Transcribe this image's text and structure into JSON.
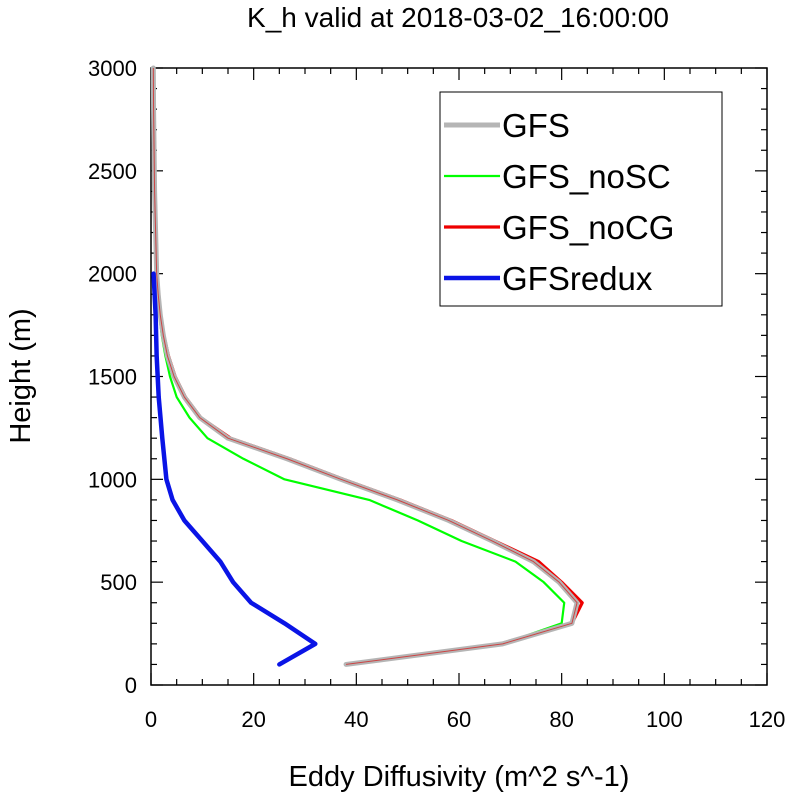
{
  "chart_data": {
    "type": "line",
    "title": "K_h valid at 2018-03-02_16:00:00",
    "xlabel": "Eddy Diffusivity (m^2 s^-1)",
    "ylabel": "Height (m)",
    "xlim": [
      0,
      120
    ],
    "ylim": [
      0,
      3000
    ],
    "xticks": [
      0,
      20,
      40,
      60,
      80,
      100,
      120
    ],
    "yticks": [
      0,
      500,
      1000,
      1500,
      2000,
      2500,
      3000
    ],
    "xtick_labels": [
      "0",
      "20",
      "40",
      "60",
      "80",
      "100",
      "120"
    ],
    "ytick_labels": [
      "0",
      "500",
      "1000",
      "1500",
      "2000",
      "2500",
      "3000"
    ],
    "grid": false,
    "legend_position": "top-right",
    "series": [
      {
        "name": "GFS",
        "color": "#b5b5b5",
        "points": [
          [
            38,
            100
          ],
          [
            68.5,
            200
          ],
          [
            82,
            300
          ],
          [
            83,
            400
          ],
          [
            79.5,
            500
          ],
          [
            74.5,
            600
          ],
          [
            66.5,
            700
          ],
          [
            58,
            800
          ],
          [
            48,
            900
          ],
          [
            37,
            1000
          ],
          [
            26.5,
            1100
          ],
          [
            15,
            1200
          ],
          [
            9.5,
            1300
          ],
          [
            6.5,
            1400
          ],
          [
            4.5,
            1500
          ],
          [
            3.2,
            1600
          ],
          [
            2.4,
            1700
          ],
          [
            1.8,
            1800
          ],
          [
            1.4,
            1900
          ],
          [
            1.1,
            2000
          ],
          [
            0.9,
            2200
          ],
          [
            0.7,
            2400
          ],
          [
            0.6,
            2600
          ],
          [
            0.5,
            2800
          ],
          [
            0.45,
            3000
          ]
        ]
      },
      {
        "name": "GFS_noSC",
        "color": "#00ff00",
        "points": [
          [
            38,
            100
          ],
          [
            68.5,
            200
          ],
          [
            80,
            300
          ],
          [
            80.5,
            400
          ],
          [
            76.5,
            500
          ],
          [
            71,
            600
          ],
          [
            60.5,
            700
          ],
          [
            52,
            800
          ],
          [
            42.5,
            900
          ],
          [
            26,
            1000
          ],
          [
            18,
            1100
          ],
          [
            11,
            1200
          ],
          [
            7.5,
            1300
          ],
          [
            5,
            1400
          ],
          [
            3.7,
            1500
          ],
          [
            2.8,
            1600
          ],
          [
            2.1,
            1700
          ],
          [
            1.6,
            1800
          ],
          [
            1.3,
            1900
          ],
          [
            1.0,
            2000
          ],
          [
            0.8,
            2200
          ],
          [
            0.65,
            2400
          ],
          [
            0.55,
            2600
          ],
          [
            0.5,
            2800
          ],
          [
            0.45,
            3000
          ]
        ]
      },
      {
        "name": "GFS_noCG",
        "color": "#ee0000",
        "points": [
          [
            38,
            100
          ],
          [
            68,
            200
          ],
          [
            82,
            300
          ],
          [
            84,
            400
          ],
          [
            80,
            500
          ],
          [
            75.5,
            600
          ],
          [
            67,
            700
          ],
          [
            58.5,
            800
          ],
          [
            48.5,
            900
          ],
          [
            37.5,
            1000
          ],
          [
            27,
            1100
          ],
          [
            15.5,
            1200
          ],
          [
            9.7,
            1300
          ],
          [
            6.7,
            1400
          ],
          [
            4.7,
            1500
          ],
          [
            3.4,
            1600
          ],
          [
            2.5,
            1700
          ],
          [
            1.9,
            1800
          ],
          [
            1.5,
            1900
          ],
          [
            1.2,
            2000
          ],
          [
            1.0,
            2200
          ],
          [
            0.8,
            2400
          ],
          [
            0.7,
            2600
          ],
          [
            0.6,
            2800
          ],
          [
            0.5,
            3000
          ]
        ]
      },
      {
        "name": "GFSredux",
        "color": "#0a14e6",
        "points": [
          [
            25,
            100
          ],
          [
            32,
            200
          ],
          [
            26,
            300
          ],
          [
            19.5,
            400
          ],
          [
            16,
            500
          ],
          [
            13.5,
            600
          ],
          [
            10,
            700
          ],
          [
            6.5,
            800
          ],
          [
            4.2,
            900
          ],
          [
            3,
            1000
          ],
          [
            2.2,
            1200
          ],
          [
            1.5,
            1400
          ],
          [
            1.1,
            1600
          ],
          [
            0.9,
            1800
          ],
          [
            0.5,
            2000
          ]
        ]
      }
    ]
  }
}
